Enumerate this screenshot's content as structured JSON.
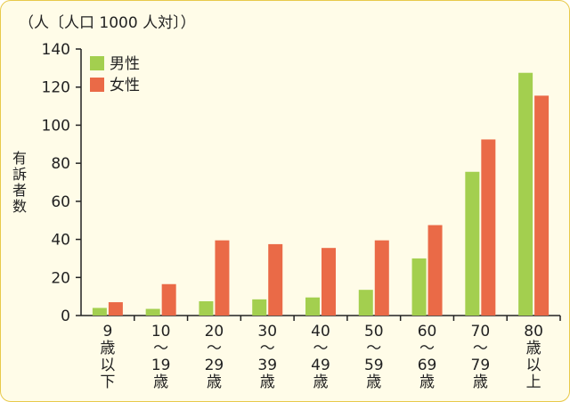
{
  "chart_data": {
    "type": "bar",
    "title": "",
    "unit_label": "（人〔人口 1000 人対〕）",
    "ylabel": "有訴者数",
    "xlabel": "",
    "ylim": [
      0,
      140
    ],
    "yticks": [
      0,
      20,
      40,
      60,
      80,
      100,
      120,
      140
    ],
    "grid": false,
    "legend_position": "top-left",
    "categories": [
      [
        "9",
        "歳",
        "以",
        "下"
      ],
      [
        "10",
        "〜",
        "19",
        "歳"
      ],
      [
        "20",
        "〜",
        "29",
        "歳"
      ],
      [
        "30",
        "〜",
        "39",
        "歳"
      ],
      [
        "40",
        "〜",
        "49",
        "歳"
      ],
      [
        "50",
        "〜",
        "59",
        "歳"
      ],
      [
        "60",
        "〜",
        "69",
        "歳"
      ],
      [
        "70",
        "〜",
        "79",
        "歳"
      ],
      [
        "80",
        "歳",
        "以",
        "上"
      ]
    ],
    "series": [
      {
        "name": "男性",
        "color": "#a3cf4f",
        "values": [
          4,
          3.5,
          7.5,
          8.5,
          9.5,
          13.5,
          30,
          75.5,
          127.5
        ]
      },
      {
        "name": "女性",
        "color": "#ea6a47",
        "values": [
          7,
          16.5,
          39.5,
          37.5,
          35.5,
          39.5,
          47.5,
          92.5,
          115.5
        ]
      }
    ]
  }
}
